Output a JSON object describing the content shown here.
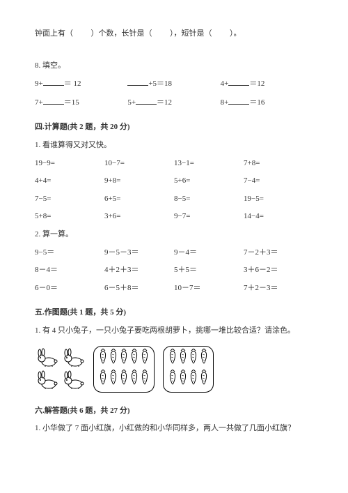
{
  "clock_line": {
    "t1": "钟面上有（",
    "t2": "）个数，长针是（",
    "t3": "），短针是（",
    "t4": "）。"
  },
  "q8": {
    "title": "8. 填空。",
    "row1": {
      "c1a": "9+",
      "c1b": "＝ 12",
      "c2a": "+5＝18",
      "c3a": "4+",
      "c3b": "＝12"
    },
    "row2": {
      "c1a": "7+",
      "c1b": "＝15",
      "c2a": "5+",
      "c2b": "＝12",
      "c3a": "8+",
      "c3b": "＝16"
    }
  },
  "sec4": {
    "title": "四.计算题(共 2 题，共 20 分)",
    "q1": {
      "title": "1. 看谁算得又对又快。",
      "rows": [
        [
          "19−9=",
          "10−7=",
          "13−1=",
          "7+8="
        ],
        [
          "4+4=",
          "9+8=",
          "5+6=",
          "7−4="
        ],
        [
          "7−5=",
          "6+5=",
          "8−5=",
          "19−5="
        ],
        [
          "5+8=",
          "3+6=",
          "9−7=",
          "14−4="
        ]
      ]
    },
    "q2": {
      "title": "2. 算一算。",
      "rows": [
        [
          "9−5＝",
          "9－5－3＝",
          "9－4＝",
          "7－2＋3＝"
        ],
        [
          "8－4＝",
          "4＋2＋3＝",
          "5＋5＝",
          "3＋6－2＝"
        ],
        [
          "6－0＝",
          "6－5＋8＝",
          "10－7＝",
          "7＋2－3＝"
        ]
      ]
    }
  },
  "sec5": {
    "title": "五.作图题(共 1 题，共 5 分)",
    "q1": "1. 有 4 只小兔子，一只小兔子要吃两根胡萝卜，挑哪一堆比较合适？请涂色。"
  },
  "sec6": {
    "title": "六.解答题(共 6 题，共 27 分)",
    "q1": "1. 小华做了 7 面小红旗，小红做的和小华同样多，两人一共做了几面小红旗？"
  },
  "icons": {
    "rabbit_svg": "rabbit",
    "carrot_svg": "carrot"
  }
}
